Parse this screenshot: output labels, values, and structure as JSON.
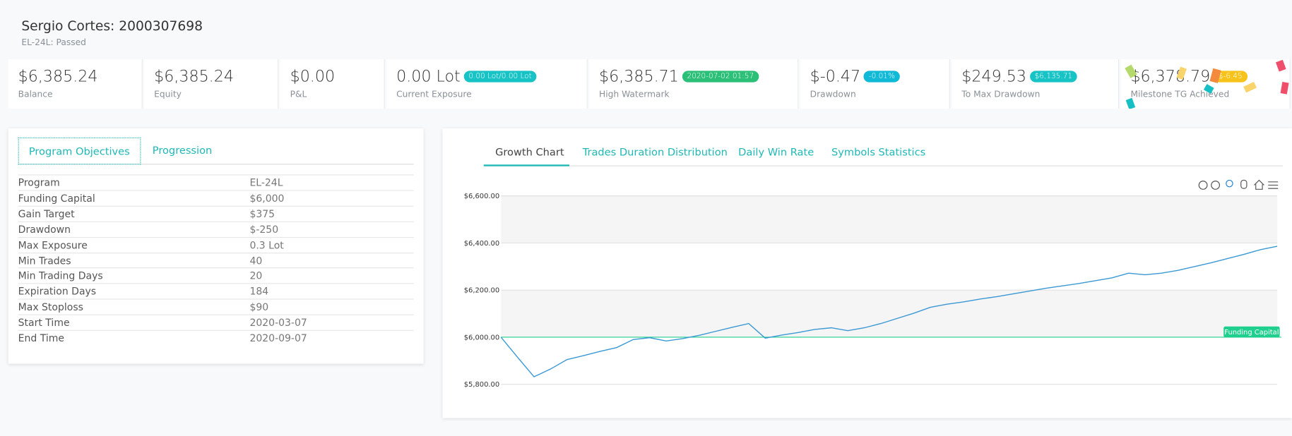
{
  "header": {
    "title": "Sergio Cortes: 2000307698",
    "subtitle": "EL-24L: Passed"
  },
  "stats": [
    {
      "value": "$6,385.24",
      "label": "Balance"
    },
    {
      "value": "$6,385.24",
      "label": "Equity"
    },
    {
      "value": "$0.00",
      "label": "P&L"
    },
    {
      "value": "0.00 Lot",
      "label": "Current Exposure",
      "badge": "0.00 Lot/0.00 Lot",
      "badge_color": "#17c3c5"
    },
    {
      "value": "$6,385.71",
      "label": "High Watermark",
      "badge": "2020-07-02 01:57",
      "badge_color": "#2bbf78"
    },
    {
      "value": "$-0.47",
      "label": "Drawdown",
      "badge": "-0.01%",
      "badge_color": "#10b9d6"
    },
    {
      "value": "$249.53",
      "label": "To Max Drawdown",
      "badge": "$6,135.71",
      "badge_color": "#17c3c5"
    },
    {
      "value": "$6,378.79",
      "label": "Milestone TG Achieved",
      "badge": "$-6.45",
      "badge_color": "#f7c21a"
    }
  ],
  "objectives": {
    "tabs": [
      "Program Objectives",
      "Progression"
    ],
    "rows": [
      [
        "Program",
        "EL-24L"
      ],
      [
        "Funding Capital",
        "$6,000"
      ],
      [
        "Gain Target",
        "$375"
      ],
      [
        "Drawdown",
        "$-250"
      ],
      [
        "Max Exposure",
        "0.3 Lot"
      ],
      [
        "Min Trades",
        "40"
      ],
      [
        "Min Trading Days",
        "20"
      ],
      [
        "Expiration Days",
        "184"
      ],
      [
        "Max Stoploss",
        "$90"
      ],
      [
        "Start Time",
        "2020-03-07"
      ],
      [
        "End Time",
        "2020-09-07"
      ]
    ]
  },
  "chart_tabs": [
    "Growth Chart",
    "Trades Duration Distribution",
    "Daily Win Rate",
    "Symbols Statistics"
  ],
  "chart_data": {
    "type": "line",
    "ylim": [
      5800,
      6600
    ],
    "yticks": [
      {
        "value": 5800,
        "label": "$5,800.00"
      },
      {
        "value": 6000,
        "label": "$6,000.00"
      },
      {
        "value": 6200,
        "label": "$6,200.00"
      },
      {
        "value": 6400,
        "label": "$6,400.00"
      },
      {
        "value": 6600,
        "label": "$6,600.00"
      }
    ],
    "grid": true,
    "series": [
      {
        "color": "#3a98d4",
        "values": [
          6000,
          5915,
          5832,
          5865,
          5905,
          5922,
          5940,
          5956,
          5990,
          5998,
          5984,
          5994,
          6008,
          6025,
          6042,
          6058,
          5996,
          6009,
          6020,
          6033,
          6040,
          6028,
          6040,
          6058,
          6080,
          6102,
          6127,
          6140,
          6150,
          6162,
          6172,
          6184,
          6196,
          6208,
          6218,
          6228,
          6240,
          6252,
          6272,
          6265,
          6272,
          6284,
          6300,
          6316,
          6334,
          6352,
          6372,
          6386
        ]
      }
    ],
    "annotations": [
      {
        "value": 6000,
        "label": "Funding Capital",
        "color": "#1fcf8e"
      }
    ]
  }
}
